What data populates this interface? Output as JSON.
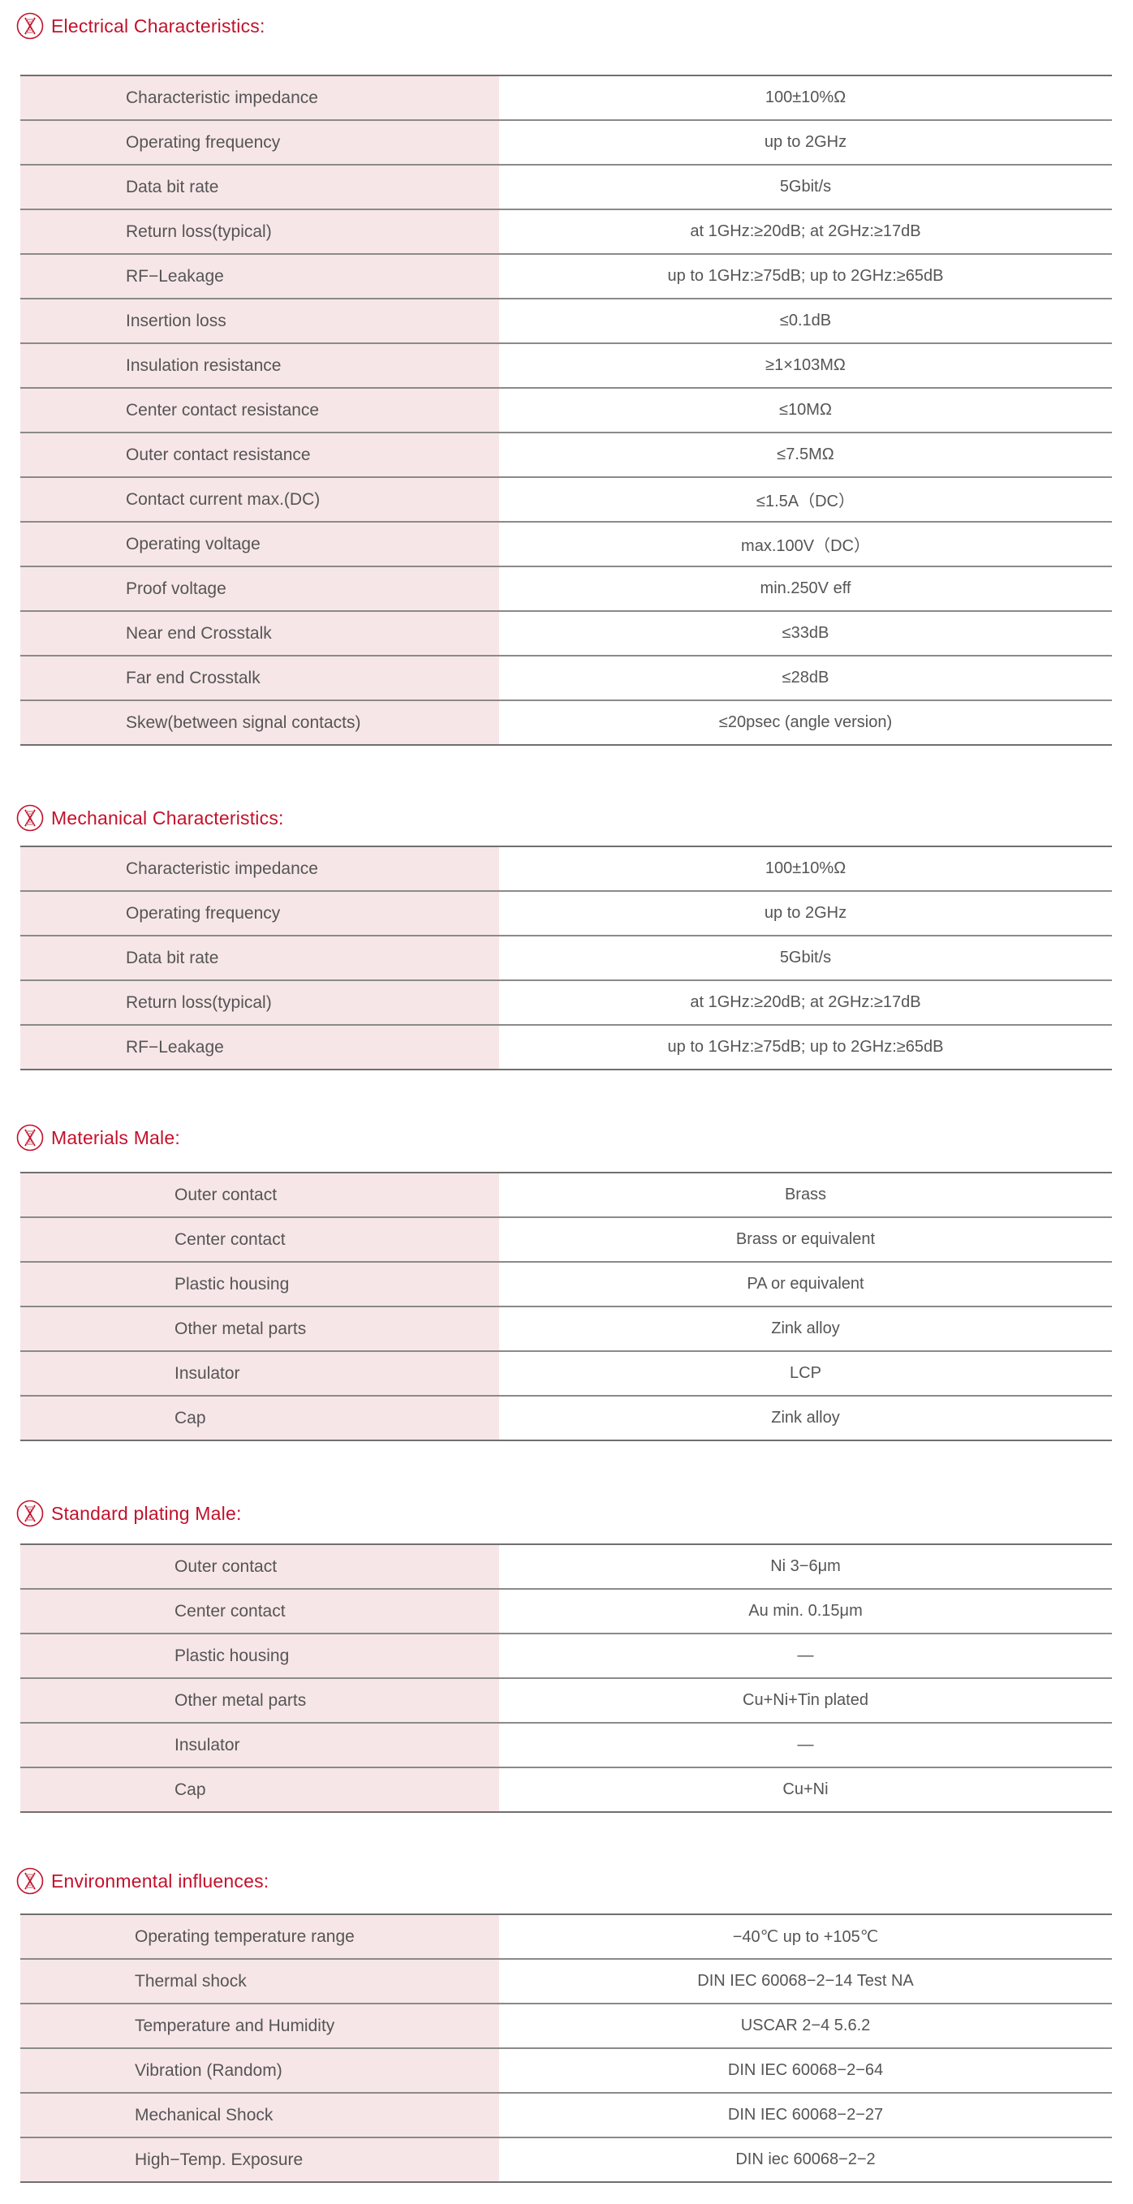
{
  "accent_color": "#c3112b",
  "row_label_bg": "#f7e6e8",
  "header_icon": "dna-helix-circle-icon",
  "sections": [
    {
      "title": "Electrical Characteristics:",
      "rows": [
        [
          "Characteristic impedance",
          "100±10%Ω"
        ],
        [
          "Operating frequency",
          "up to 2GHz"
        ],
        [
          "Data bit rate",
          "5Gbit/s"
        ],
        [
          "Return loss(typical)",
          "at 1GHz:≥20dB; at 2GHz:≥17dB"
        ],
        [
          "RF−Leakage",
          "up to 1GHz:≥75dB; up to 2GHz:≥65dB"
        ],
        [
          "Insertion loss",
          "≤0.1dB"
        ],
        [
          "Insulation resistance",
          "≥1×103MΩ"
        ],
        [
          "Center contact resistance",
          "≤10MΩ"
        ],
        [
          "Outer contact resistance",
          "≤7.5MΩ"
        ],
        [
          "Contact current max.(DC)",
          "≤1.5A（DC）"
        ],
        [
          "Operating voltage",
          "max.100V（DC）"
        ],
        [
          "Proof voltage",
          "min.250V eff"
        ],
        [
          "Near end Crosstalk",
          "≤33dB"
        ],
        [
          "Far end Crosstalk",
          "≤28dB"
        ],
        [
          "Skew(between signal contacts)",
          "≤20psec (angle version)"
        ]
      ]
    },
    {
      "title": "Mechanical Characteristics:",
      "rows": [
        [
          "Characteristic impedance",
          "100±10%Ω"
        ],
        [
          "Operating frequency",
          "up to 2GHz"
        ],
        [
          "Data bit rate",
          "5Gbit/s"
        ],
        [
          "Return loss(typical)",
          "at 1GHz:≥20dB; at 2GHz:≥17dB"
        ],
        [
          "RF−Leakage",
          "up to 1GHz:≥75dB; up to 2GHz:≥65dB"
        ]
      ]
    },
    {
      "title": "Materials Male:",
      "rows": [
        [
          "Outer contact",
          "Brass"
        ],
        [
          "Center contact",
          "Brass or equivalent"
        ],
        [
          "Plastic housing",
          "PA or equivalent"
        ],
        [
          "Other metal parts",
          "Zink alloy"
        ],
        [
          "Insulator",
          "LCP"
        ],
        [
          "Cap",
          "Zink alloy"
        ]
      ]
    },
    {
      "title": "Standard plating Male:",
      "rows": [
        [
          "Outer contact",
          "Ni 3−6μm"
        ],
        [
          "Center contact",
          "Au min. 0.15μm"
        ],
        [
          "Plastic housing",
          "—"
        ],
        [
          "Other metal parts",
          "Cu+Ni+Tin plated"
        ],
        [
          "Insulator",
          "—"
        ],
        [
          "Cap",
          "Cu+Ni"
        ]
      ]
    },
    {
      "title": "Environmental influences:",
      "rows": [
        [
          "Operating temperature range",
          "−40℃ up to +105℃"
        ],
        [
          "Thermal shock",
          "DIN IEC 60068−2−14 Test NA"
        ],
        [
          "Temperature and Humidity",
          "USCAR 2−4 5.6.2"
        ],
        [
          "Vibration (Random)",
          "DIN IEC 60068−2−64"
        ],
        [
          "Mechanical Shock",
          "DIN IEC 60068−2−27"
        ],
        [
          "High−Temp. Exposure",
          "DIN iec 60068−2−2"
        ]
      ]
    }
  ]
}
